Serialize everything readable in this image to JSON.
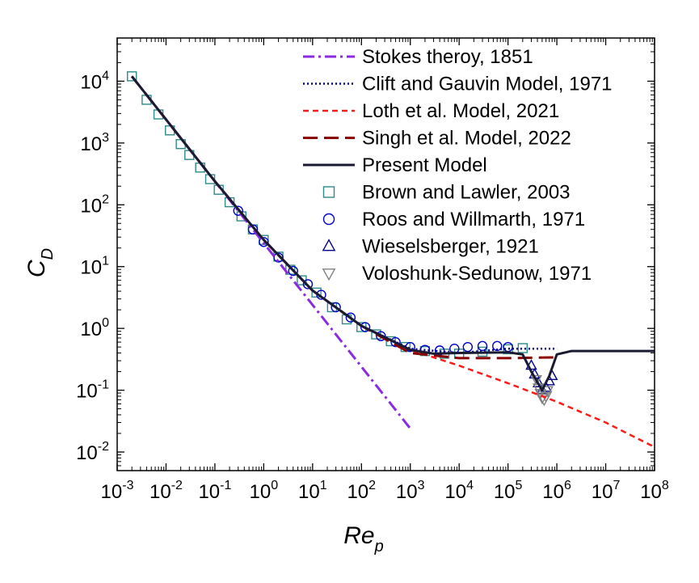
{
  "chart_data": {
    "type": "line",
    "xscale": "log",
    "yscale": "log",
    "xlim": [
      0.001,
      100000000
    ],
    "ylim": [
      0.005,
      50000
    ],
    "xlabel_main": "Re",
    "xlabel_sub": "p",
    "ylabel_main": "C",
    "ylabel_sub": "D",
    "x_ticks": [
      {
        "base": "10",
        "exp": "-3"
      },
      {
        "base": "10",
        "exp": "-2"
      },
      {
        "base": "10",
        "exp": "-1"
      },
      {
        "base": "10",
        "exp": "0"
      },
      {
        "base": "10",
        "exp": "1"
      },
      {
        "base": "10",
        "exp": "2"
      },
      {
        "base": "10",
        "exp": "3"
      },
      {
        "base": "10",
        "exp": "4"
      },
      {
        "base": "10",
        "exp": "5"
      },
      {
        "base": "10",
        "exp": "6"
      },
      {
        "base": "10",
        "exp": "7"
      },
      {
        "base": "10",
        "exp": "8"
      }
    ],
    "y_ticks": [
      {
        "base": "10",
        "exp": "-2"
      },
      {
        "base": "10",
        "exp": "-1"
      },
      {
        "base": "10",
        "exp": "0"
      },
      {
        "base": "10",
        "exp": "1"
      },
      {
        "base": "10",
        "exp": "2"
      },
      {
        "base": "10",
        "exp": "3"
      },
      {
        "base": "10",
        "exp": "4"
      }
    ],
    "legend_position": "top-right",
    "series": [
      {
        "name": "Stokes theroy, 1851",
        "kind": "line",
        "style": "dashdot",
        "color": "#8a2be2",
        "x": [
          0.002,
          1000
        ],
        "y": [
          12000,
          0.024
        ]
      },
      {
        "name": "Clift and Gauvin Model, 1971",
        "kind": "line",
        "style": "dotted",
        "color": "#00008b",
        "x": [
          0.002,
          0.01,
          0.1,
          1,
          10,
          100,
          1000,
          10000,
          100000,
          1000000
        ],
        "y": [
          12000,
          2400,
          240,
          27,
          4.1,
          1.1,
          0.47,
          0.4,
          0.47,
          0.47
        ]
      },
      {
        "name": "Loth et al. Model, 2021",
        "kind": "line",
        "style": "dashed",
        "color": "#ff1a1a",
        "x": [
          0.002,
          0.01,
          0.1,
          1,
          10,
          100,
          1000,
          10000,
          100000,
          1000000,
          10000000,
          100000000
        ],
        "y": [
          12000,
          2400,
          240,
          27,
          4.1,
          1.1,
          0.45,
          0.25,
          0.13,
          0.065,
          0.03,
          0.012
        ]
      },
      {
        "name": "Singh et al. Model, 2022",
        "kind": "line",
        "style": "longdash",
        "color": "#8b0000",
        "x": [
          0.002,
          0.01,
          0.1,
          1,
          10,
          100,
          1000,
          10000,
          100000,
          1000000
        ],
        "y": [
          12000,
          2400,
          240,
          27,
          4.1,
          1.1,
          0.4,
          0.33,
          0.33,
          0.34
        ]
      },
      {
        "name": "Present Model",
        "kind": "line",
        "style": "solid",
        "color": "#1a1a33",
        "x": [
          0.002,
          0.01,
          0.1,
          1,
          10,
          100,
          1000,
          3000,
          10000,
          100000,
          200000,
          300000,
          500000,
          700000,
          1000000,
          2000000,
          10000000,
          100000000
        ],
        "y": [
          12000,
          2400,
          240,
          27,
          4.1,
          1.1,
          0.45,
          0.39,
          0.4,
          0.41,
          0.38,
          0.2,
          0.1,
          0.17,
          0.38,
          0.43,
          0.43,
          0.43
        ]
      },
      {
        "name": "Brown and Lawler, 2003",
        "kind": "marker",
        "marker": "square",
        "color": "#2e8b87",
        "x": [
          0.002,
          0.004,
          0.007,
          0.012,
          0.02,
          0.03,
          0.05,
          0.08,
          0.12,
          0.2,
          0.35,
          0.6,
          1,
          2,
          3.5,
          6,
          12,
          25,
          50,
          100,
          200,
          400,
          800,
          2000,
          5000,
          10000,
          30000,
          100000,
          200000
        ],
        "y": [
          12000,
          5000,
          2900,
          1600,
          960,
          640,
          400,
          260,
          175,
          110,
          65,
          40,
          27,
          14.5,
          8.9,
          6,
          3.8,
          2.2,
          1.4,
          1.05,
          0.8,
          0.62,
          0.5,
          0.43,
          0.39,
          0.39,
          0.42,
          0.46,
          0.48
        ]
      },
      {
        "name": "Roos and Willmarth, 1971",
        "kind": "marker",
        "marker": "circle",
        "color": "#0000cd",
        "x": [
          0.3,
          0.6,
          1,
          2,
          4,
          8,
          15,
          30,
          60,
          120,
          250,
          500,
          1000,
          2000,
          4000,
          8000,
          15000,
          30000,
          60000,
          100000
        ],
        "y": [
          80,
          40,
          25,
          14,
          8.5,
          5.2,
          3.5,
          2.2,
          1.5,
          1.05,
          0.75,
          0.6,
          0.5,
          0.45,
          0.44,
          0.47,
          0.5,
          0.52,
          0.52,
          0.5
        ]
      },
      {
        "name": "Wieselsberger, 1921",
        "kind": "marker",
        "marker": "triangle-up",
        "color": "#00008b",
        "x": [
          300000,
          350000,
          420000,
          500000,
          600000,
          700000,
          800000
        ],
        "y": [
          0.25,
          0.18,
          0.13,
          0.1,
          0.11,
          0.14,
          0.17
        ]
      },
      {
        "name": "Voloshunk-Sedunow, 1971",
        "kind": "marker",
        "marker": "triangle-down",
        "color": "#808080",
        "x": [
          380000,
          420000,
          460000,
          500000,
          550000,
          600000,
          650000
        ],
        "y": [
          0.15,
          0.11,
          0.09,
          0.075,
          0.07,
          0.08,
          0.1
        ]
      }
    ]
  }
}
